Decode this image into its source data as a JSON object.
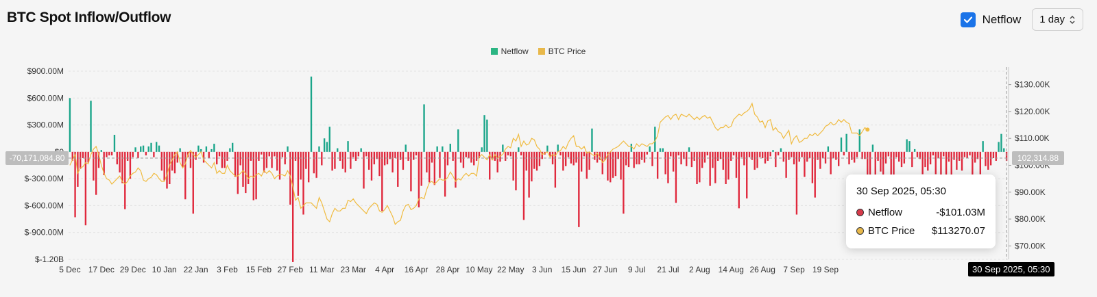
{
  "header": {
    "title": "BTC Spot Inflow/Outflow"
  },
  "controls": {
    "netflow_label": "Netflow",
    "netflow_checked": true,
    "interval": "1 day",
    "interval_arrow": "⌃⌄"
  },
  "legend": [
    {
      "label": "Netflow",
      "color": "#2bb583"
    },
    {
      "label": "BTC Price",
      "color": "#e8b84a"
    }
  ],
  "crosshair": {
    "left_value": "-70,171,084.80",
    "right_value": "102,314.88"
  },
  "tooltip": {
    "title": "30 Sep 2025, 05:30",
    "rows": [
      {
        "label": "Netflow",
        "value": "-$101.03M",
        "color": "#d63a4a"
      },
      {
        "label": "BTC Price",
        "value": "$113270.07",
        "color": "#e8b84a"
      }
    ]
  },
  "time_badge": "30 Sep 2025, 05:30",
  "chart_data": {
    "type": "bar",
    "title": "",
    "xlabel": "",
    "ylabel": "",
    "ylim": [
      -1200,
      900
    ],
    "y2lim": [
      65000,
      135000
    ],
    "y_ticks": [
      {
        "v": 900,
        "label": "$900.00M"
      },
      {
        "v": 600,
        "label": "$600.00M"
      },
      {
        "v": 300,
        "label": "$300.00M"
      },
      {
        "v": 0,
        "label": "$0"
      },
      {
        "v": -300,
        "label": "$-300.00M"
      },
      {
        "v": -600,
        "label": "$-600.00M"
      },
      {
        "v": -900,
        "label": "$-900.00M"
      },
      {
        "v": -1200,
        "label": "$-1.20B"
      }
    ],
    "y2_ticks": [
      {
        "v": 130000,
        "label": "$130.00K"
      },
      {
        "v": 120000,
        "label": "$120.00K"
      },
      {
        "v": 110000,
        "label": "$110.00K"
      },
      {
        "v": 100000,
        "label": "$100.00K"
      },
      {
        "v": 90000,
        "label": "$90.00K"
      },
      {
        "v": 80000,
        "label": "$80.00K"
      },
      {
        "v": 70000,
        "label": "$70.00K"
      }
    ],
    "x_ticks": [
      {
        "i": 0,
        "label": "5 Dec"
      },
      {
        "i": 12,
        "label": "17 Dec"
      },
      {
        "i": 24,
        "label": "29 Dec"
      },
      {
        "i": 36,
        "label": "10 Jan"
      },
      {
        "i": 48,
        "label": "22 Jan"
      },
      {
        "i": 60,
        "label": "3 Feb"
      },
      {
        "i": 72,
        "label": "15 Feb"
      },
      {
        "i": 84,
        "label": "27 Feb"
      },
      {
        "i": 96,
        "label": "11 Mar"
      },
      {
        "i": 108,
        "label": "23 Mar"
      },
      {
        "i": 120,
        "label": "4 Apr"
      },
      {
        "i": 132,
        "label": "16 Apr"
      },
      {
        "i": 144,
        "label": "28 Apr"
      },
      {
        "i": 156,
        "label": "10 May"
      },
      {
        "i": 168,
        "label": "22 May"
      },
      {
        "i": 180,
        "label": "3 Jun"
      },
      {
        "i": 192,
        "label": "15 Jun"
      },
      {
        "i": 204,
        "label": "27 Jun"
      },
      {
        "i": 216,
        "label": "9 Jul"
      },
      {
        "i": 228,
        "label": "21 Jul"
      },
      {
        "i": 240,
        "label": "2 Aug"
      },
      {
        "i": 252,
        "label": "14 Aug"
      },
      {
        "i": 264,
        "label": "26 Aug"
      },
      {
        "i": 276,
        "label": "7 Sep"
      },
      {
        "i": 288,
        "label": "19 Sep"
      }
    ],
    "series": [
      {
        "name": "Netflow",
        "axis": "left",
        "pos_color": "#1aa58a",
        "neg_color": "#e0283c",
        "x_start": "5 Dec",
        "x_end": "30 Sep",
        "values": [
          600,
          -100,
          -730,
          -390,
          -190,
          -70,
          -820,
          -120,
          570,
          -320,
          -480,
          -180,
          20,
          -260,
          -60,
          -40,
          -40,
          190,
          -140,
          -230,
          -350,
          -640,
          -100,
          -300,
          -60,
          50,
          -70,
          60,
          70,
          -40,
          60,
          100,
          -60,
          110,
          70,
          -210,
          -320,
          -410,
          -360,
          -210,
          -240,
          -120,
          40,
          -170,
          -530,
          -60,
          -180,
          -690,
          -90,
          70,
          30,
          -120,
          60,
          -70,
          30,
          90,
          -140,
          -50,
          -180,
          -180,
          -100,
          40,
          100,
          -280,
          -470,
          -150,
          -390,
          -460,
          -360,
          -100,
          -540,
          -530,
          -100,
          -30,
          -230,
          -180,
          -50,
          -180,
          -50,
          -210,
          -310,
          -60,
          -140,
          60,
          -590,
          -1230,
          -100,
          -490,
          -310,
          -700,
          -190,
          -340,
          840,
          -240,
          -290,
          60,
          -150,
          150,
          110,
          280,
          -210,
          -190,
          40,
          -100,
          -190,
          -230,
          120,
          -190,
          -60,
          -100,
          -50,
          40,
          -410,
          -50,
          -200,
          -320,
          -140,
          -80,
          -270,
          -660,
          -150,
          -140,
          -80,
          -230,
          -70,
          -390,
          -90,
          -200,
          80,
          -100,
          -440,
          -90,
          -40,
          -620,
          -380,
          530,
          -230,
          -340,
          -120,
          -370,
          60,
          -290,
          60,
          -500,
          -150,
          90,
          -100,
          -400,
          250,
          -120,
          -180,
          -60,
          -70,
          -120,
          -150,
          -100,
          -70,
          50,
          410,
          360,
          -310,
          -90,
          -100,
          -230,
          -110,
          80,
          -100,
          -40,
          -50,
          -320,
          -430,
          50,
          -40,
          -760,
          -210,
          -510,
          -330,
          -190,
          -210,
          -160,
          -80,
          -30,
          70,
          -50,
          -140,
          -400,
          80,
          -40,
          -210,
          -160,
          -60,
          -130,
          -150,
          -120,
          -840,
          -220,
          -50,
          -300,
          -200,
          260,
          -90,
          -120,
          -90,
          -250,
          -90,
          -320,
          -340,
          -290,
          -270,
          -80,
          -310,
          -690,
          -150,
          -170,
          90,
          -180,
          -140,
          -140,
          -90,
          -120,
          -30,
          60,
          -160,
          280,
          -300,
          40,
          40,
          -250,
          -350,
          -50,
          -220,
          -570,
          -40,
          -140,
          -80,
          -160,
          50,
          -170,
          -100,
          -360,
          -340,
          -180,
          -120,
          -40,
          -380,
          -180,
          -350,
          -100,
          -80,
          -200,
          -360,
          -310,
          -100,
          -40,
          -290,
          -630,
          -60,
          -150,
          -520,
          -60,
          -90,
          -200,
          -180,
          -60,
          -70,
          -130,
          -100,
          -50,
          20,
          -170,
          -40,
          40,
          -110,
          -290,
          -90,
          -60,
          -140,
          -700,
          -110,
          -60,
          -280,
          -110,
          -70,
          -350,
          -510,
          -90,
          -190,
          -70,
          -130,
          60,
          -250,
          -70,
          -90,
          -160,
          160,
          -40,
          200,
          -140,
          -90,
          -120,
          -60,
          250,
          -80,
          -80,
          -400,
          -380,
          80,
          -360,
          -100,
          -220,
          -460,
          -130,
          -50,
          -330,
          -340,
          -60,
          -110,
          -170,
          -130,
          140,
          120,
          -170,
          30,
          -60,
          -80,
          -250,
          -170,
          -210,
          -140,
          -40,
          -250,
          -70,
          -260,
          -50,
          -280,
          -110,
          -430,
          -90,
          -200,
          -100,
          -210,
          -60,
          -70,
          -40,
          -400,
          -120,
          -80,
          -250,
          120,
          -160,
          -200,
          -150,
          -70,
          -100,
          110,
          200,
          40,
          -101.03
        ]
      },
      {
        "name": "BTC Price",
        "axis": "right",
        "color": "#f0bb40",
        "values": [
          100000,
          102000,
          104000,
          97000,
          99000,
          99500,
          101000,
          100500,
          104000,
          106000,
          107000,
          104000,
          100000,
          97000,
          95000,
          94500,
          93000,
          94000,
          95000,
          96000,
          94000,
          93000,
          94000,
          96000,
          97000,
          97500,
          99000,
          98000,
          94500,
          94000,
          95000,
          95500,
          97000,
          96500,
          95000,
          94000,
          94000,
          96500,
          100000,
          102000,
          104000,
          105000,
          101000,
          99000,
          100500,
          104000,
          105500,
          104000,
          103000,
          104000,
          105000,
          102000,
          101000,
          100000,
          99000,
          101000,
          97000,
          98000,
          97000,
          97000,
          100000,
          98000,
          97000,
          96000,
          96000,
          97000,
          98000,
          97000,
          95000,
          96000,
          95500,
          96500,
          97000,
          96000,
          98000,
          97000,
          98000,
          97000,
          95000,
          96000,
          96500,
          96500,
          96000,
          98000,
          96000,
          92000,
          87000,
          88000,
          84000,
          85000,
          86000,
          86000,
          86000,
          85000,
          84000,
          88000,
          86000,
          83000,
          80000,
          79000,
          82000,
          84000,
          83000,
          83000,
          84000,
          84000,
          87000,
          86500,
          87500,
          86000,
          85000,
          84000,
          83000,
          82000,
          84000,
          85000,
          86000,
          85500,
          83000,
          82500,
          83500,
          85000,
          83000,
          81000,
          78000,
          79000,
          79500,
          83000,
          85000,
          85500,
          83500,
          84000,
          85000,
          87500,
          88000,
          87500,
          91000,
          93500,
          94000,
          93000,
          94000,
          95000,
          94500,
          94500,
          95500,
          97500,
          96000,
          94000,
          95000,
          94500,
          96000,
          97000,
          96000,
          97000,
          97000,
          96000,
          103000,
          104000,
          103000,
          102000,
          104000,
          102000,
          104000,
          102500,
          103500,
          104000,
          106000,
          107000,
          106500,
          110000,
          109000,
          111500,
          107000,
          109000,
          107500,
          108000,
          110000,
          109500,
          107000,
          106000,
          104000,
          104500,
          105000,
          103000,
          104000,
          103500,
          105000,
          105500,
          107000,
          106000,
          108500,
          110000,
          111000,
          107000,
          107000,
          106000,
          107000,
          104500,
          105000,
          104000,
          103500,
          104500,
          103000,
          101000,
          102000,
          104000,
          105000,
          106000,
          106500,
          107000,
          108000,
          109000,
          108000,
          107000,
          107000,
          106000,
          108000,
          107000,
          108000,
          107500,
          107000,
          108000,
          108000,
          109000,
          111000,
          116000,
          117000,
          118000,
          118500,
          117000,
          118500,
          119000,
          117000,
          119000,
          118500,
          118000,
          119000,
          118000,
          117000,
          118000,
          117000,
          118000,
          118500,
          117500,
          118000,
          116000,
          114000,
          113000,
          114000,
          114000,
          115000,
          114000,
          114500,
          117000,
          118000,
          119000,
          118500,
          119500,
          120000,
          121000,
          123000,
          119000,
          118000,
          116000,
          116500,
          114000,
          116500,
          117000,
          113000,
          114000,
          112500,
          112000,
          110000,
          111500,
          113000,
          108000,
          110000,
          111000,
          108500,
          109000,
          110000,
          110000,
          111500,
          111000,
          112000,
          111000,
          112000,
          113000,
          114500,
          115000,
          116000,
          115000,
          115500,
          117000,
          116000,
          117000,
          116000,
          115500,
          112000,
          112000,
          112000,
          111000,
          112500,
          114000,
          113270
        ]
      }
    ]
  }
}
